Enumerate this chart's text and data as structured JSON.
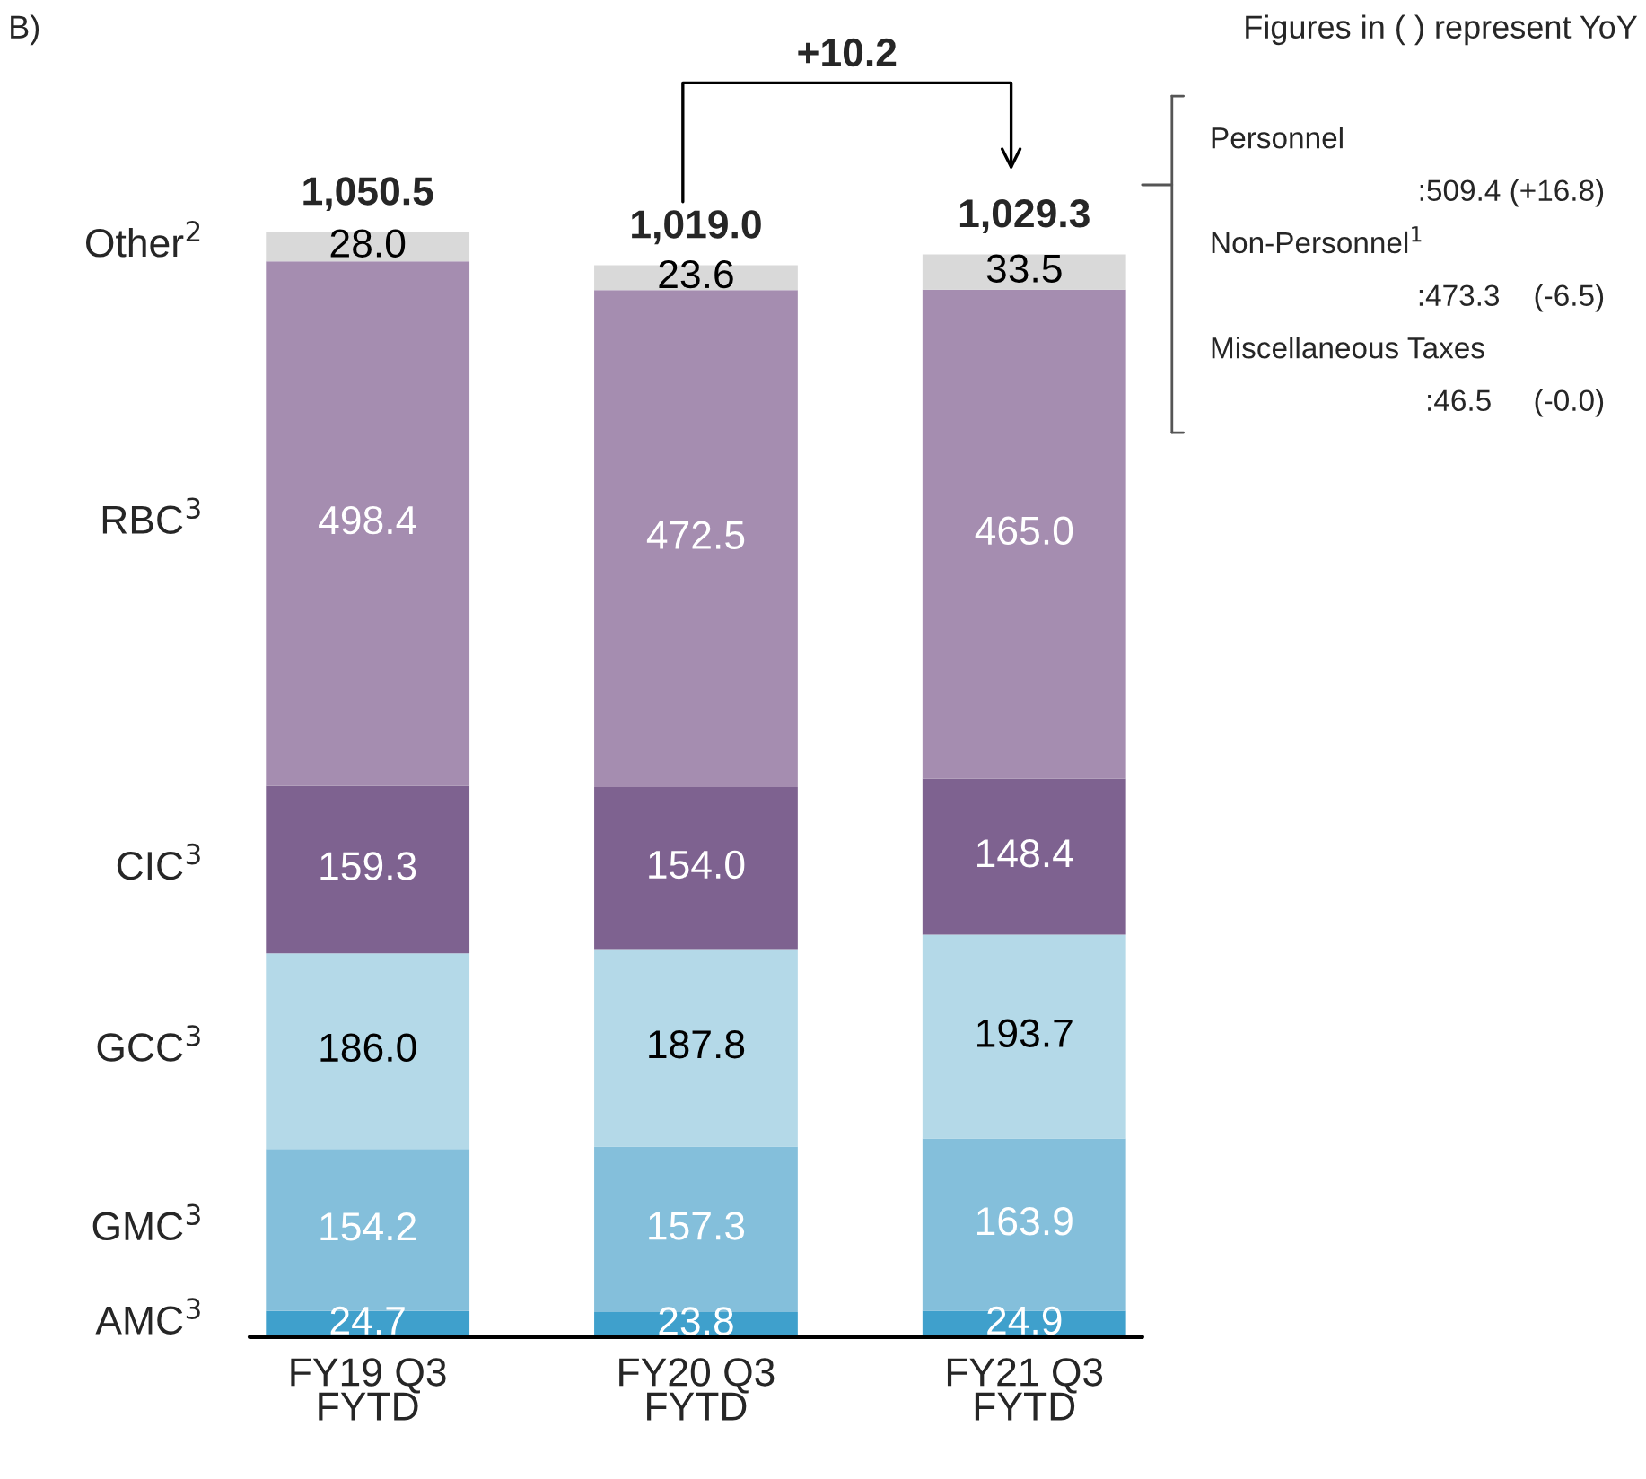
{
  "chart_data": {
    "type": "bar",
    "stacked": true,
    "categories": [
      "FY19 Q3\nFYTD",
      "FY20 Q3\nFYTD",
      "FY21 Q3\nFYTD"
    ],
    "series": [
      {
        "name": "AMC$^{3}$",
        "color": "#3fa0cc",
        "values": [
          24.7,
          23.8,
          24.9
        ],
        "value_labels": [
          "24.7",
          "23.8",
          "24.9"
        ]
      },
      {
        "name": "GMC$^{3}$",
        "color": "#84bfdb",
        "values": [
          154.2,
          157.3,
          163.9
        ],
        "value_labels": [
          "154.2",
          "157.3",
          "163.9"
        ]
      },
      {
        "name": "GCC$^{3}$",
        "color": "#b4d9e8",
        "values": [
          186.0,
          187.8,
          193.7
        ],
        "value_labels": [
          "186.0",
          "187.8",
          "193.7"
        ]
      },
      {
        "name": "CIC$^{3}$",
        "color": "#7e6290",
        "values": [
          159.3,
          154.0,
          148.4
        ],
        "value_labels": [
          "159.3",
          "154.0",
          "148.4"
        ]
      },
      {
        "name": "RBC$^{3}$",
        "color": "#a58db0",
        "values": [
          498.4,
          472.5,
          465.0
        ],
        "value_labels": [
          "498.4",
          "472.5",
          "465.0"
        ]
      },
      {
        "name": "Other$^{2}$",
        "color": "#d9d9d9",
        "values": [
          28.0,
          23.6,
          33.5
        ],
        "value_labels": [
          "28.0",
          "23.6",
          "33.5"
        ]
      }
    ],
    "totals": [
      "1,050.5",
      "1,019.0",
      "1,029.3"
    ],
    "annotations": [
      "B)",
      "+10.2",
      "Figures in ( ) represent YoY",
      "Personnel",
      ":509.4 (+16.8)",
      "Non-Personnel$^{1}$",
      ":473.3    (-6.5)",
      "Miscellaneous Taxes",
      ":46.5     (-0.0)"
    ]
  }
}
